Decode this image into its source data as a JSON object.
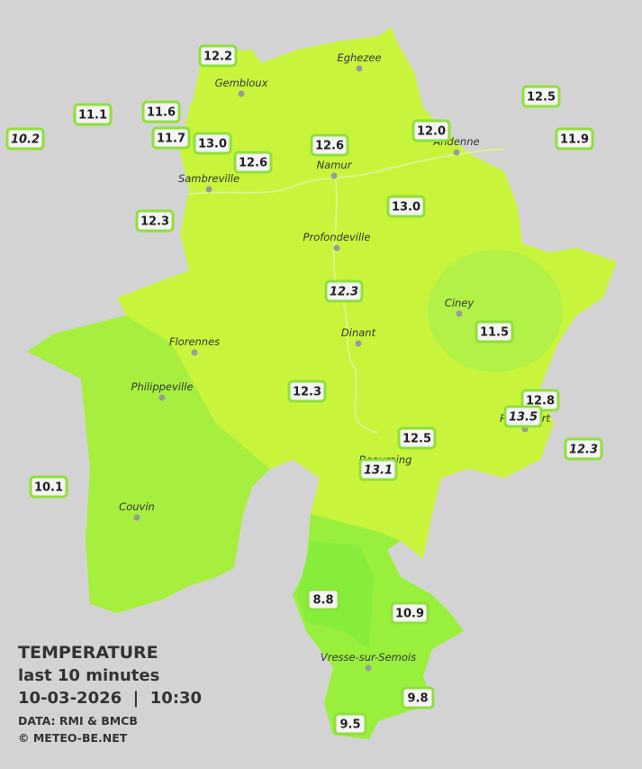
{
  "legend": {
    "title": "TEMPERATURE",
    "subtitle": "last 10 minutes",
    "datetime": "10-03-2026  |  10:30",
    "source": "DATA: RMI & BMCB",
    "copyright": "© METEO-BE.NET"
  },
  "cities": [
    "Eghezee",
    "Gembloux",
    "Andenne",
    "Namur",
    "Sambreville",
    "Profondeville",
    "Ciney",
    "Dinant",
    "Florennes",
    "Philippeville",
    "Rochefort",
    "Beauraing",
    "Couvin",
    "Vresse-sur-Semois"
  ],
  "stations": [
    {
      "value": "12.2",
      "italic": false
    },
    {
      "value": "11.1",
      "italic": false
    },
    {
      "value": "11.6",
      "italic": false
    },
    {
      "value": "10.2",
      "italic": true
    },
    {
      "value": "11.7",
      "italic": false
    },
    {
      "value": "13.0",
      "italic": false
    },
    {
      "value": "12.6",
      "italic": false
    },
    {
      "value": "12.6",
      "italic": false
    },
    {
      "value": "12.0",
      "italic": false
    },
    {
      "value": "12.5",
      "italic": false
    },
    {
      "value": "11.9",
      "italic": false
    },
    {
      "value": "12.3",
      "italic": false
    },
    {
      "value": "13.0",
      "italic": false
    },
    {
      "value": "12.3",
      "italic": true
    },
    {
      "value": "11.5",
      "italic": false
    },
    {
      "value": "12.3",
      "italic": false
    },
    {
      "value": "12.8",
      "italic": false
    },
    {
      "value": "13.5",
      "italic": true
    },
    {
      "value": "12.5",
      "italic": false
    },
    {
      "value": "12.3",
      "italic": true
    },
    {
      "value": "13.1",
      "italic": true
    },
    {
      "value": "10.1",
      "italic": false
    },
    {
      "value": "8.8",
      "italic": false
    },
    {
      "value": "10.9",
      "italic": false
    },
    {
      "value": "9.8",
      "italic": false
    },
    {
      "value": "9.5",
      "italic": false
    }
  ]
}
